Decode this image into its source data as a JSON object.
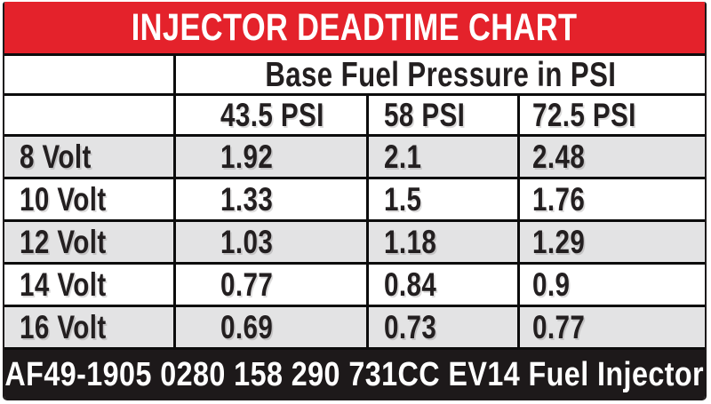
{
  "chart_data": {
    "type": "table",
    "title": "INJECTOR DEADTIME CHART",
    "column_group_header": "Base Fuel Pressure in PSI",
    "columns": [
      "43.5 PSI",
      "58 PSI",
      "72.5 PSI"
    ],
    "rows": [
      {
        "label": "8 Volt",
        "values": [
          "1.92",
          "2.1",
          "2.48"
        ]
      },
      {
        "label": "10 Volt",
        "values": [
          "1.33",
          "1.5",
          "1.76"
        ]
      },
      {
        "label": "12 Volt",
        "values": [
          "1.03",
          "1.18",
          "1.29"
        ]
      },
      {
        "label": "14 Volt",
        "values": [
          "0.77",
          "0.84",
          "0.9"
        ]
      },
      {
        "label": "16 Volt",
        "values": [
          "0.69",
          "0.73",
          "0.77"
        ]
      }
    ],
    "footer": "AF49-1905 0280 158 290 731CC EV14 Fuel Injector",
    "layout": {
      "grid": "on",
      "alternating_row_shading": "gray on 8V, 12V, 16V rows"
    }
  },
  "colors": {
    "banner_red": "#e4222b",
    "footer_black": "#1d191a",
    "row_alt_gray": "#e3e3e4",
    "border_black": "#0c0c0c",
    "text_dark": "#231f20",
    "text_light": "#ffffff"
  }
}
